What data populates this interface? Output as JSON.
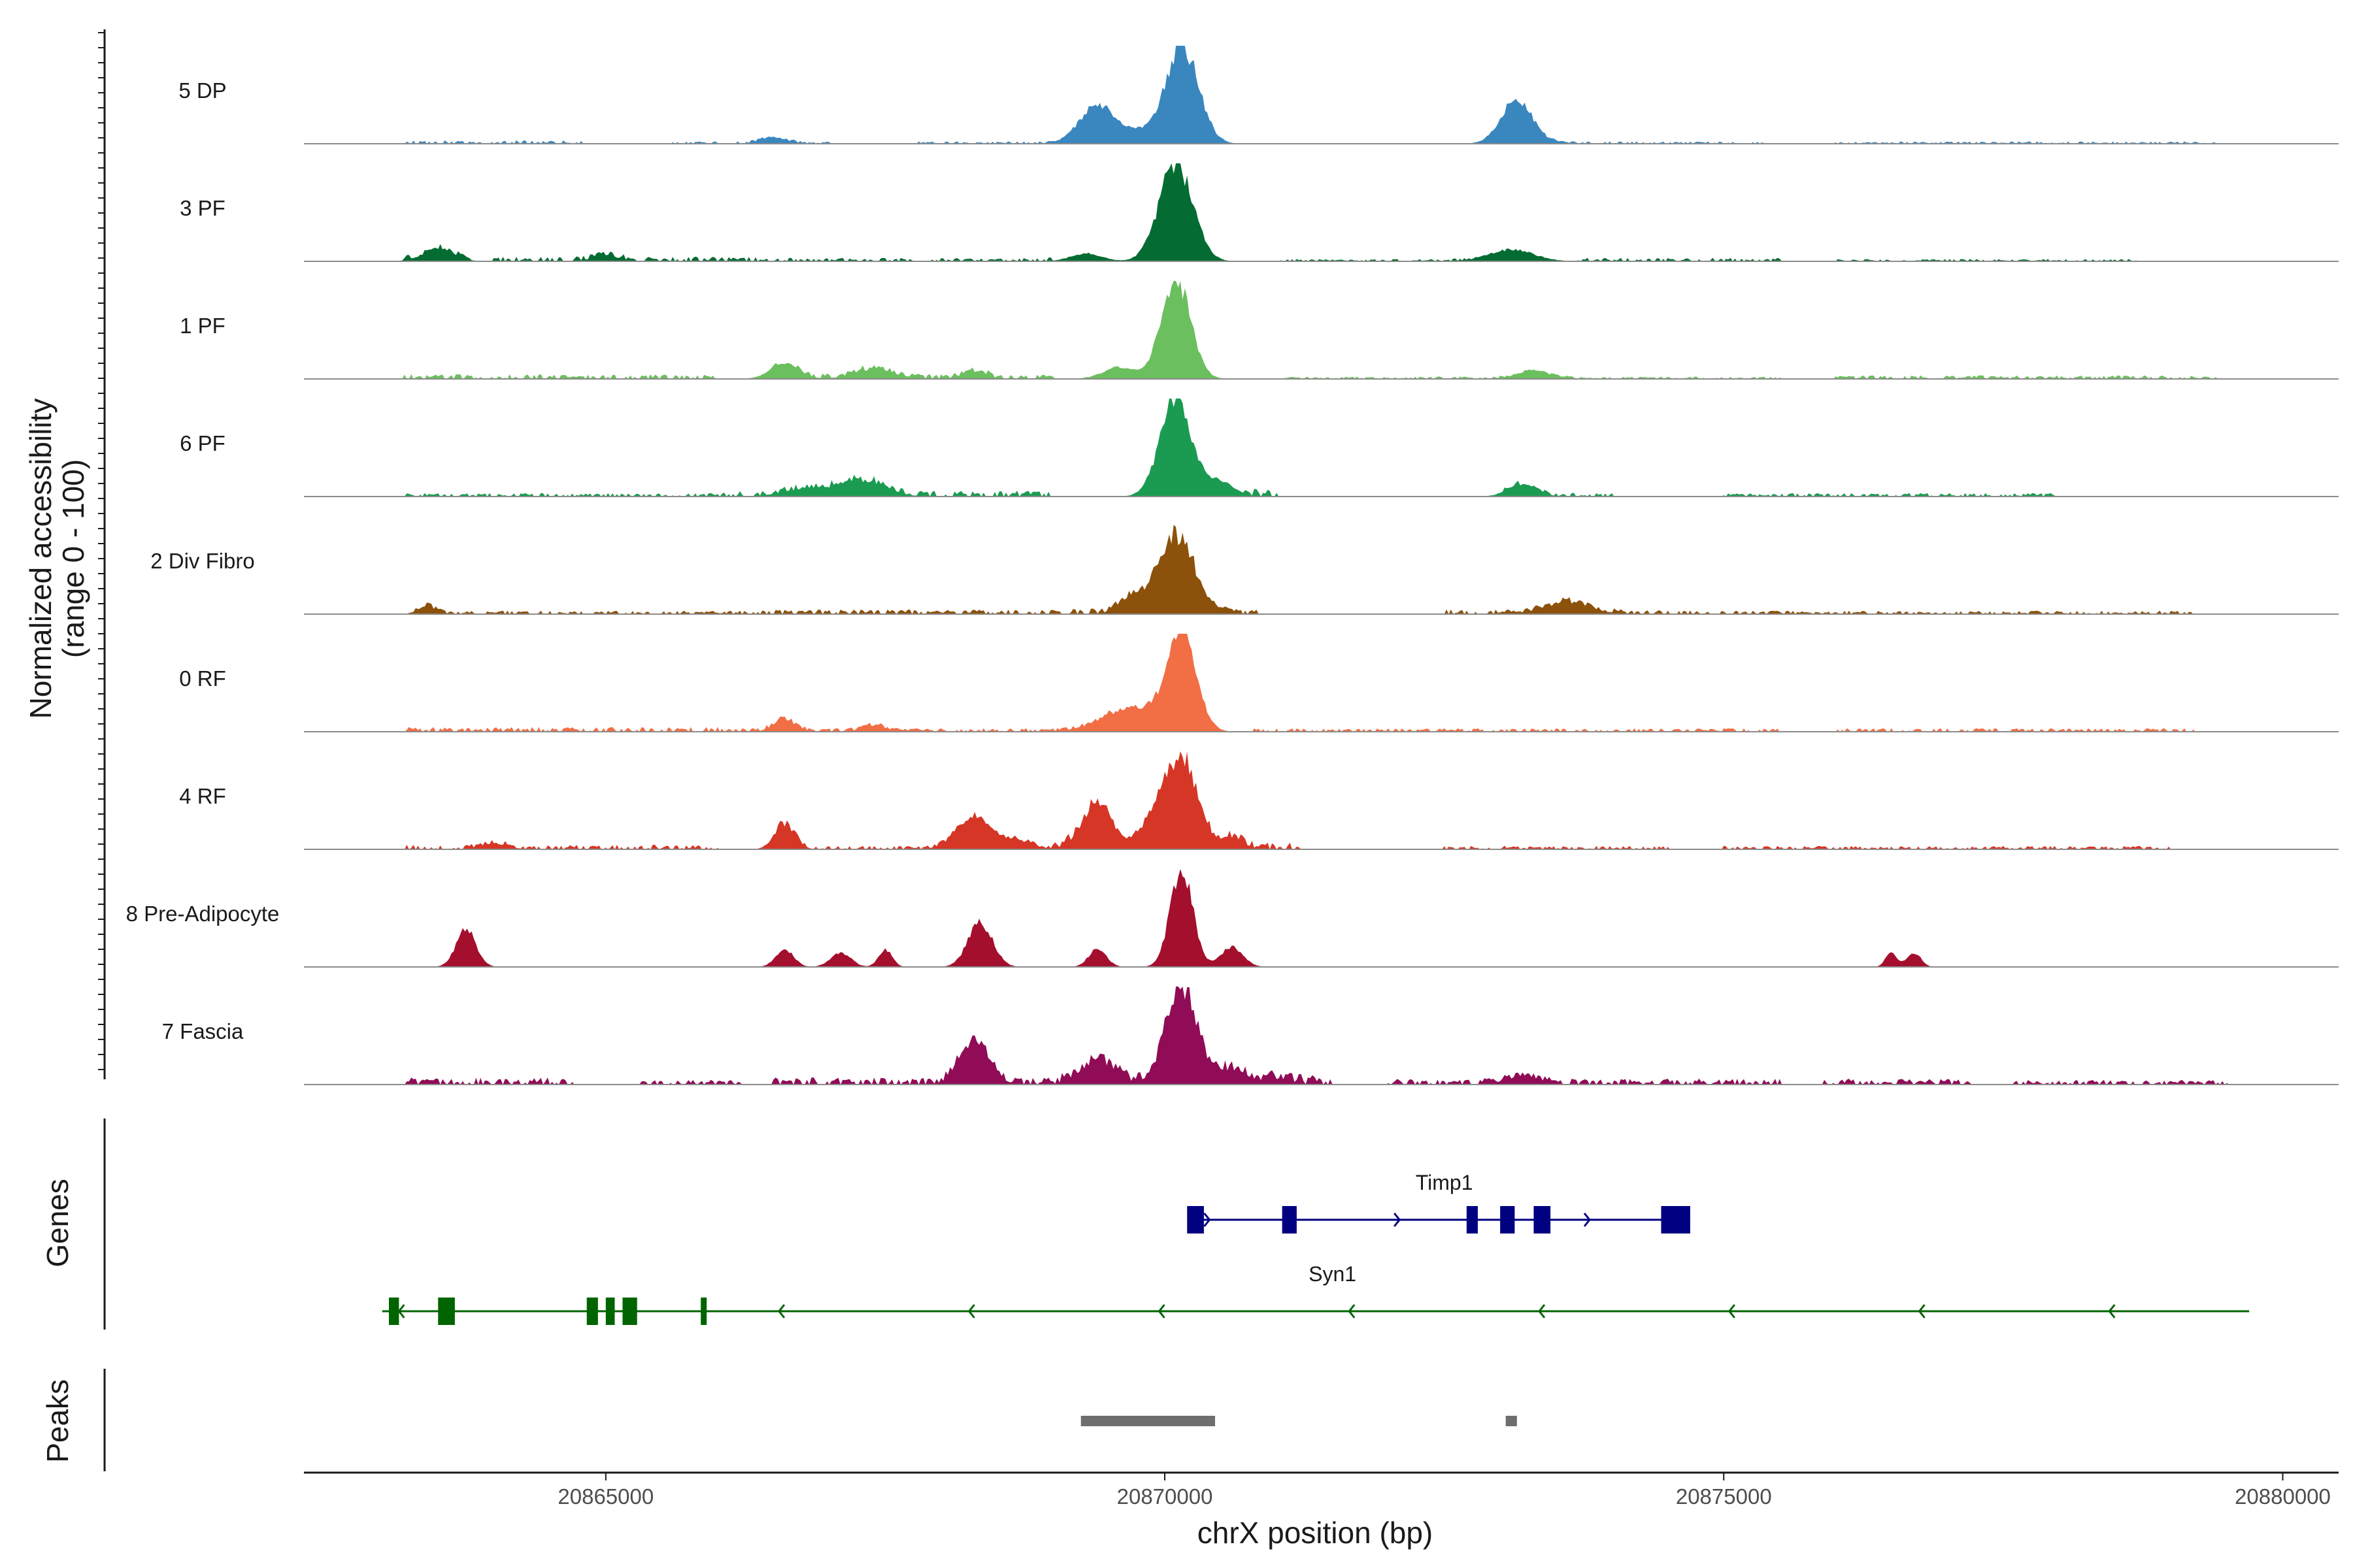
{
  "chart_data": {
    "type": "area",
    "title": "",
    "xlabel": "chrX position (bp)",
    "ylabel": "Normalized accessibility",
    "ylabel_sub": "(range 0 - 100)",
    "xlim": [
      20862300,
      20880500
    ],
    "ylim": [
      0,
      100
    ],
    "x_ticks": [
      20865000,
      20870000,
      20875000,
      20880000
    ],
    "x_tick_labels": [
      "20865000",
      "20870000",
      "20875000",
      "20880000"
    ],
    "panels": {
      "genes_label": "Genes",
      "peaks_label": "Peaks"
    },
    "series": [
      {
        "name": "5 DP",
        "color": "#3A87C0",
        "background": [
          [
            20863200,
            20864800,
            3
          ],
          [
            20865600,
            20867000,
            2
          ],
          [
            20867800,
            20869000,
            2
          ],
          [
            20873300,
            20875400,
            2
          ],
          [
            20876000,
            20879400,
            2
          ]
        ],
        "peaks": [
          [
            20869400,
            160,
            40
          ],
          [
            20870150,
            150,
            100
          ],
          [
            20869750,
            110,
            10
          ],
          [
            20873150,
            140,
            45
          ],
          [
            20866500,
            120,
            6
          ]
        ]
      },
      {
        "name": "3 PF",
        "color": "#046C32",
        "background": [
          [
            20863200,
            20866500,
            4
          ],
          [
            20866500,
            20869000,
            3
          ],
          [
            20871000,
            20872800,
            2
          ],
          [
            20873700,
            20875500,
            3
          ],
          [
            20876000,
            20878700,
            2
          ]
        ],
        "peaks": [
          [
            20870100,
            150,
            100
          ],
          [
            20863500,
            140,
            12
          ],
          [
            20873100,
            200,
            12
          ],
          [
            20869300,
            140,
            8
          ],
          [
            20865000,
            120,
            6
          ]
        ]
      },
      {
        "name": "1 PF",
        "color": "#6CBF5E",
        "background": [
          [
            20863200,
            20866000,
            4
          ],
          [
            20866500,
            20869000,
            4
          ],
          [
            20871000,
            20875500,
            2
          ],
          [
            20876000,
            20879400,
            3
          ]
        ],
        "peaks": [
          [
            20870100,
            130,
            100
          ],
          [
            20869600,
            150,
            12
          ],
          [
            20866600,
            130,
            15
          ],
          [
            20867400,
            180,
            10
          ],
          [
            20868300,
            100,
            8
          ],
          [
            20873300,
            150,
            8
          ]
        ]
      },
      {
        "name": "6 PF",
        "color": "#1B9B51",
        "background": [
          [
            20863200,
            20866000,
            3
          ],
          [
            20866000,
            20869000,
            5
          ],
          [
            20870700,
            20871000,
            6
          ],
          [
            20873000,
            20874000,
            3
          ],
          [
            20875000,
            20878000,
            3
          ]
        ],
        "peaks": [
          [
            20870100,
            140,
            100
          ],
          [
            20867300,
            200,
            16
          ],
          [
            20870500,
            120,
            15
          ],
          [
            20873200,
            130,
            12
          ],
          [
            20866800,
            200,
            8
          ]
        ]
      },
      {
        "name": "2 Div Fibro",
        "color": "#8C510A",
        "background": [
          [
            20863300,
            20866500,
            3
          ],
          [
            20866500,
            20869000,
            4
          ],
          [
            20869000,
            20870900,
            5
          ],
          [
            20872500,
            20875000,
            4
          ],
          [
            20875000,
            20878000,
            3
          ],
          [
            20878000,
            20879200,
            3
          ]
        ],
        "peaks": [
          [
            20870100,
            160,
            80
          ],
          [
            20869700,
            120,
            15
          ],
          [
            20873600,
            200,
            12
          ],
          [
            20863400,
            80,
            8
          ]
        ]
      },
      {
        "name": "0 RF",
        "color": "#F26E45",
        "background": [
          [
            20863200,
            20866000,
            4
          ],
          [
            20866000,
            20869500,
            3
          ],
          [
            20870800,
            20875500,
            3
          ],
          [
            20876000,
            20879200,
            3
          ]
        ],
        "peaks": [
          [
            20870150,
            130,
            100
          ],
          [
            20869700,
            250,
            25
          ],
          [
            20866600,
            100,
            12
          ],
          [
            20867400,
            100,
            6
          ]
        ]
      },
      {
        "name": "4 RF",
        "color": "#D63626",
        "background": [
          [
            20863200,
            20866000,
            4
          ],
          [
            20866500,
            20869000,
            3
          ],
          [
            20869000,
            20871200,
            6
          ],
          [
            20872500,
            20874500,
            3
          ],
          [
            20875000,
            20879000,
            3
          ]
        ],
        "peaks": [
          [
            20870150,
            140,
            95
          ],
          [
            20869400,
            140,
            45
          ],
          [
            20868300,
            160,
            32
          ],
          [
            20866600,
            90,
            26
          ],
          [
            20869900,
            110,
            25
          ],
          [
            20870600,
            100,
            12
          ],
          [
            20868700,
            120,
            8
          ],
          [
            20864000,
            120,
            6
          ]
        ]
      },
      {
        "name": "8 Pre-Adipocyte",
        "color": "#A50F2E",
        "background": [],
        "peaks": [
          [
            20870150,
            100,
            100
          ],
          [
            20863750,
            90,
            38
          ],
          [
            20868350,
            110,
            45
          ],
          [
            20866600,
            80,
            18
          ],
          [
            20867100,
            90,
            15
          ],
          [
            20867500,
            60,
            18
          ],
          [
            20869400,
            80,
            18
          ],
          [
            20870600,
            100,
            20
          ],
          [
            20876500,
            50,
            15
          ],
          [
            20876700,
            60,
            15
          ]
        ]
      },
      {
        "name": "7 Fascia",
        "color": "#900C57",
        "background": [
          [
            20863200,
            20864700,
            6
          ],
          [
            20865300,
            20866200,
            4
          ],
          [
            20866500,
            20869000,
            6
          ],
          [
            20869000,
            20871500,
            8
          ],
          [
            20872000,
            20875500,
            5
          ],
          [
            20875900,
            20877200,
            5
          ],
          [
            20877600,
            20879500,
            4
          ]
        ],
        "peaks": [
          [
            20870150,
            140,
            100
          ],
          [
            20868300,
            130,
            45
          ],
          [
            20869400,
            150,
            25
          ],
          [
            20870600,
            130,
            15
          ],
          [
            20873200,
            150,
            8
          ],
          [
            20871000,
            120,
            6
          ]
        ]
      }
    ],
    "genes": [
      {
        "name": "Timp1",
        "strand": "+",
        "color": "#000080",
        "start": 20870250,
        "end": 20874700,
        "exons": [
          [
            20870200,
            20870350
          ],
          [
            20871050,
            20871180
          ],
          [
            20872700,
            20872800
          ],
          [
            20873000,
            20873130
          ],
          [
            20873300,
            20873450
          ],
          [
            20874440,
            20874700
          ]
        ]
      },
      {
        "name": "Syn1",
        "strand": "-",
        "color": "#006400",
        "start": 20863000,
        "end": 20879700,
        "exons": [
          [
            20863060,
            20863150
          ],
          [
            20863500,
            20863650
          ],
          [
            20864830,
            20864930
          ],
          [
            20865000,
            20865080
          ],
          [
            20865150,
            20865280
          ],
          [
            20865850,
            20865900
          ]
        ]
      }
    ],
    "peak_regions": [
      [
        20869250,
        20870450
      ],
      [
        20873050,
        20873150
      ]
    ]
  }
}
